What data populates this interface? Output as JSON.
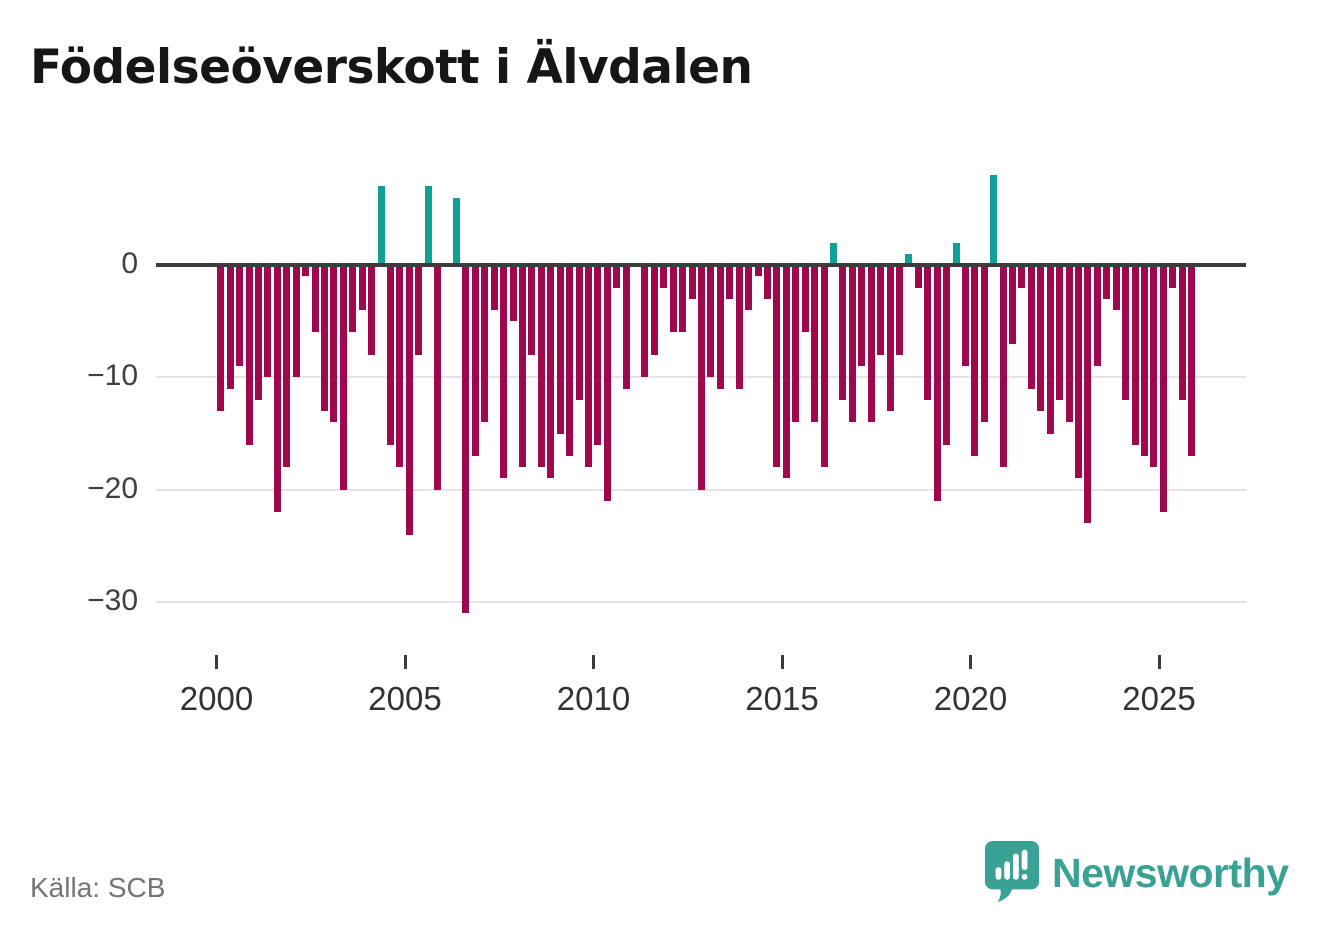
{
  "title": "Födelseöverskott i Älvdalen",
  "source": "Källa: SCB",
  "brand": {
    "name": "Newsworthy",
    "icon": "newsworthy-speech-bubble-chart-icon"
  },
  "chart_data": {
    "type": "bar",
    "title": "Födelseöverskott i Älvdalen",
    "frequency": "quarterly",
    "start_period": "2000 Q1",
    "end_period": "2025 Q4",
    "values": [
      -13,
      -11,
      -9,
      -16,
      -12,
      -10,
      -22,
      -18,
      -10,
      -1,
      -6,
      -13,
      -14,
      -20,
      -6,
      -4,
      -8,
      7,
      -16,
      -18,
      -24,
      -8,
      7,
      -20,
      0,
      6,
      -31,
      -17,
      -14,
      -4,
      -19,
      -5,
      -18,
      -8,
      -18,
      -19,
      -15,
      -17,
      -12,
      -18,
      -16,
      -21,
      -2,
      -11,
      0,
      -10,
      -8,
      -2,
      -6,
      -6,
      -3,
      -20,
      -10,
      -11,
      -3,
      -11,
      -4,
      -1,
      -3,
      -18,
      -19,
      -14,
      -6,
      -14,
      -18,
      2,
      -12,
      -14,
      -9,
      -14,
      -8,
      -13,
      -8,
      1,
      -2,
      -12,
      -21,
      -16,
      2,
      -9,
      -17,
      -14,
      8,
      -18,
      -7,
      -2,
      -11,
      -13,
      -15,
      -12,
      -14,
      -19,
      -23,
      -9,
      -3,
      -4,
      -12,
      -16,
      -17,
      -18,
      -22,
      -2,
      -12,
      -17
    ],
    "x_tick_labels": [
      "2000",
      "2005",
      "2010",
      "2015",
      "2020",
      "2025"
    ],
    "y_tick_labels": [
      "0",
      "−10",
      "−20",
      "−30"
    ],
    "y_ticks": [
      0,
      -10,
      -20,
      -30
    ],
    "ylim": [
      -32,
      9
    ],
    "grid": "horizontal",
    "legend": "none",
    "colors": {
      "positive": "#11a096",
      "negative": "#a0084d",
      "axis": "#3c3c3c",
      "gridline": "#e4e4e4",
      "brand_teal": "#3aa294"
    }
  }
}
